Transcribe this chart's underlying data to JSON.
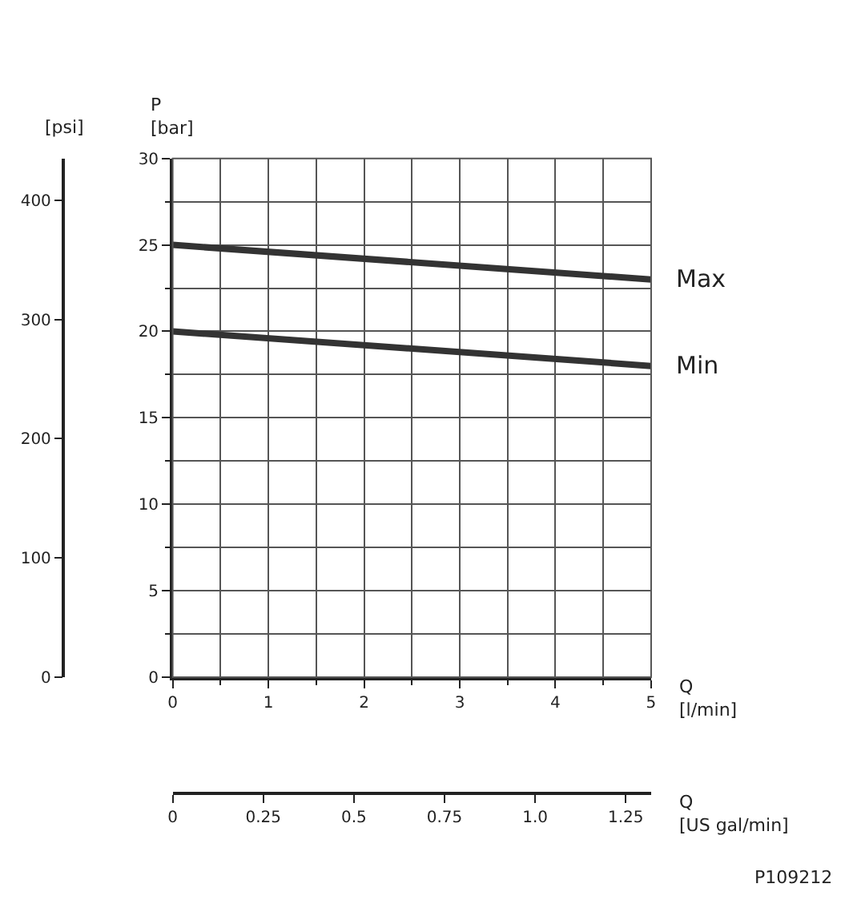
{
  "chart_data": {
    "type": "line",
    "x": [
      0,
      5
    ],
    "series": [
      {
        "name": "Max",
        "color": "#333333",
        "values": [
          25,
          23
        ]
      },
      {
        "name": "Min",
        "color": "#333333",
        "values": [
          20,
          18
        ]
      }
    ],
    "ylabel": "P\n[bar]",
    "y2label": "[psi]",
    "xlabel": "Q\n[l/min]",
    "x2label": "Q\n[US gal/min]",
    "xlim": [
      0,
      5
    ],
    "xticks": [
      0,
      {
        "value": 0.5,
        "label": null
      },
      1,
      {
        "value": 1.5,
        "label": null
      },
      2,
      {
        "value": 2.5,
        "label": null
      },
      3,
      {
        "value": 3.5,
        "label": null
      },
      4,
      {
        "value": 4.5,
        "label": null
      },
      5
    ],
    "ylim": [
      0,
      30
    ],
    "yticks": [
      0,
      {
        "value": 2.5,
        "label": null
      },
      5,
      {
        "value": 7.5,
        "label": null
      },
      10,
      {
        "value": 12.5,
        "label": null
      },
      15,
      {
        "value": 17.5,
        "label": null
      },
      20,
      {
        "value": 22.5,
        "label": null
      },
      25,
      {
        "value": 27.5,
        "label": null
      },
      30
    ],
    "y2lim": [
      0,
      435
    ],
    "y2ticks": [
      0,
      100,
      200,
      300,
      400
    ],
    "x2lim": [
      0,
      1.32
    ],
    "x2ticks": [
      0,
      0.25,
      0.5,
      0.75,
      {
        "value": 1.0,
        "label": "1.0"
      },
      1.25
    ],
    "annotations": [
      "P109212"
    ],
    "grid": true,
    "legend": false,
    "marker": "none",
    "line_style": "solid"
  }
}
